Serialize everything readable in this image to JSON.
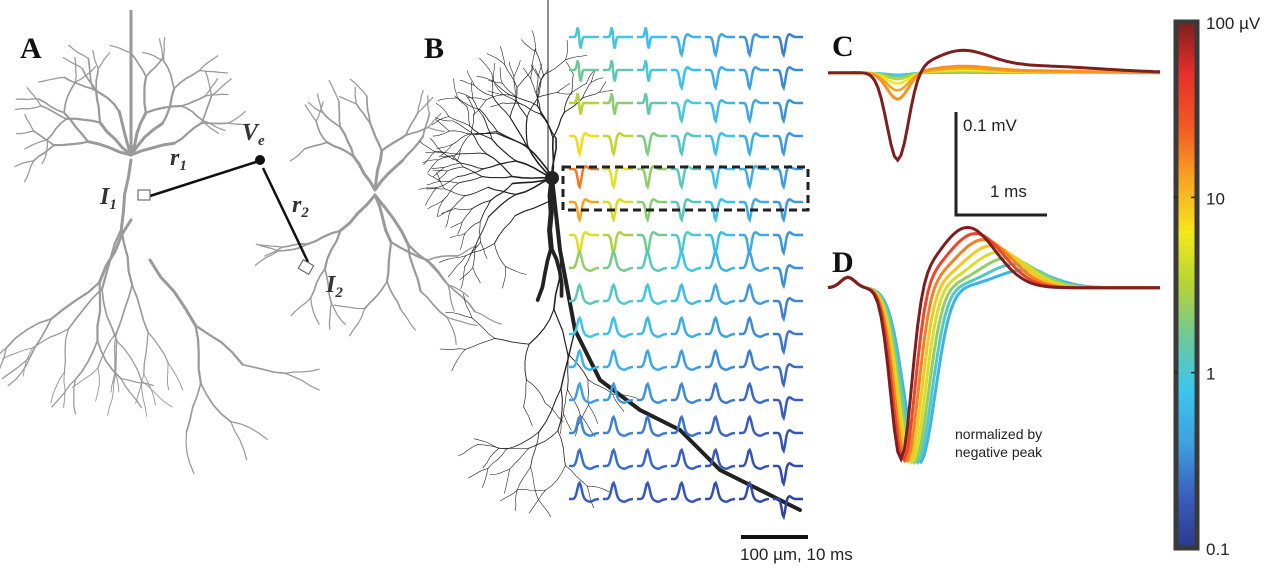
{
  "panels": {
    "a": {
      "label": "A",
      "ve": "V",
      "ve_sub": "e",
      "r1": "r",
      "r1_sub": "1",
      "r2": "r",
      "r2_sub": "2",
      "i1": "I",
      "i1_sub": "1",
      "i2": "I",
      "i2_sub": "2"
    },
    "b": {
      "label": "B",
      "scalebar": "100 µm, 10 ms"
    },
    "c": {
      "label": "C",
      "scale_v": "0.1 mV",
      "scale_t": "1 ms"
    },
    "d": {
      "label": "D",
      "note_line1": "normalized by",
      "note_line2": "negative peak"
    }
  },
  "colorbar": {
    "scale": "log",
    "range": [
      0.1,
      100
    ],
    "ticks": [
      {
        "value": 100,
        "label": "100  µV"
      },
      {
        "value": 10,
        "label": "10"
      },
      {
        "value": 1,
        "label": "1"
      },
      {
        "value": 0.1,
        "label": "0.1"
      }
    ],
    "colors": [
      "#2b3990",
      "#3a5fbf",
      "#3fa0e0",
      "#3cc6ee",
      "#6cc99a",
      "#b5d334",
      "#f4e81c",
      "#f8a522",
      "#f15a24",
      "#e8302a",
      "#7d1f1f"
    ]
  },
  "colors": {
    "neuron_gray": "#9a9a9a",
    "neuron_black": "#222222",
    "trace_dark_red": "#7d1f1f",
    "trace_orange": "#f7931e"
  }
}
